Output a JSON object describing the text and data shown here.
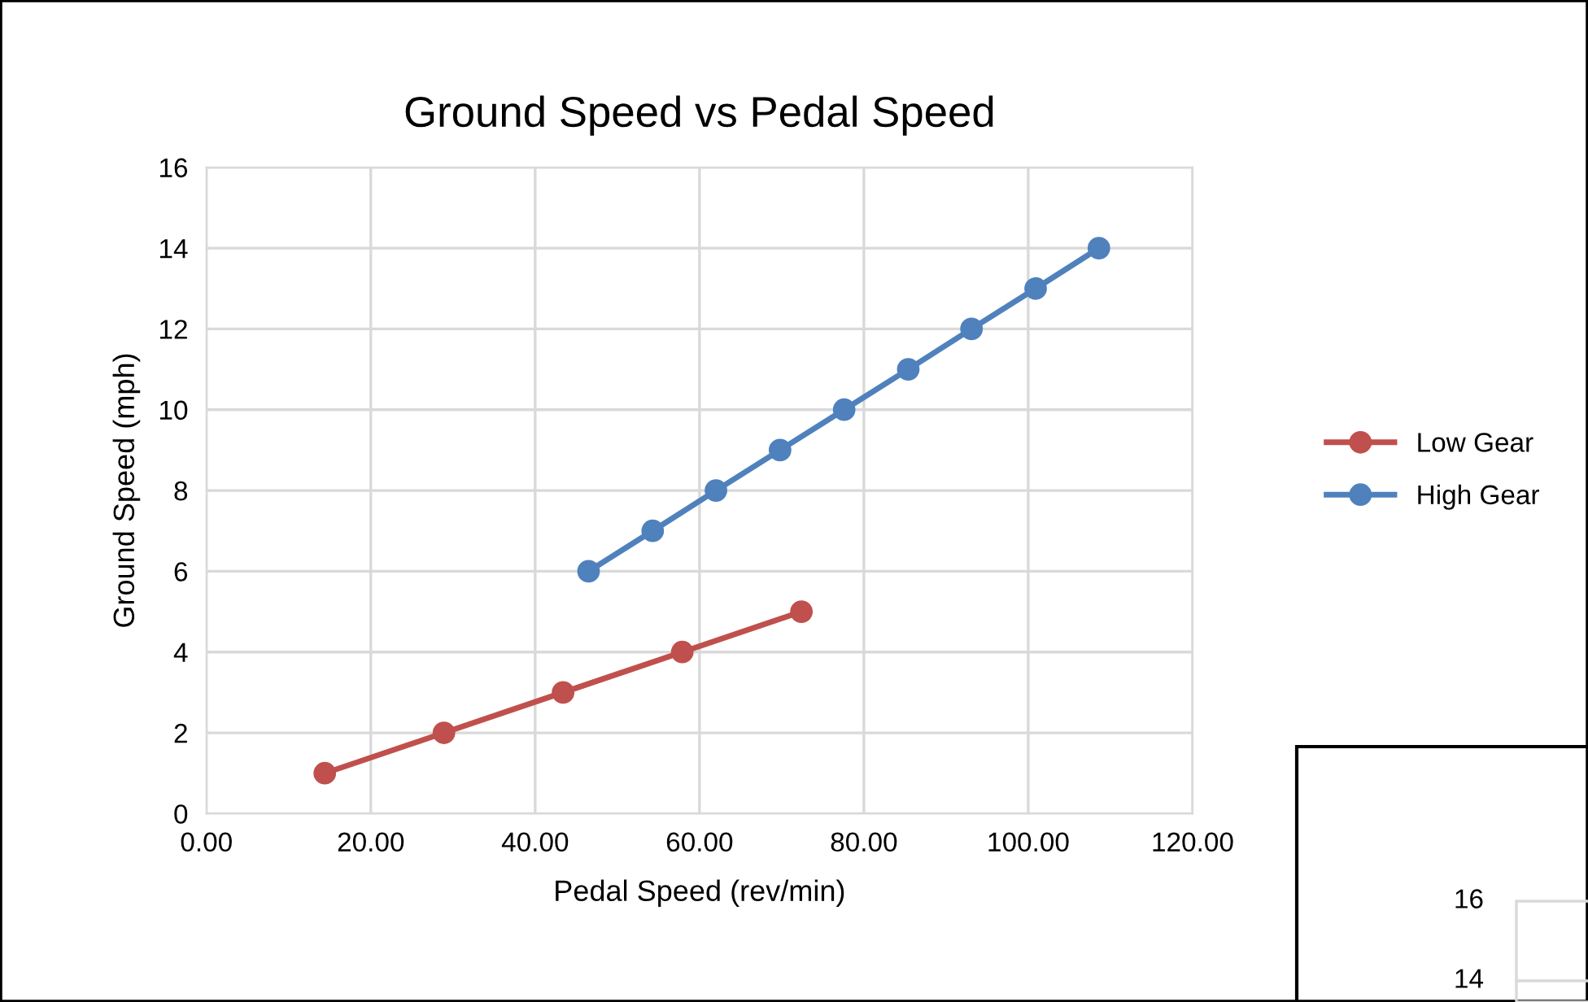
{
  "chart_data": [
    {
      "type": "line",
      "title": "Ground Speed vs Pedal Speed",
      "xlabel": "Pedal Speed (rev/min)",
      "ylabel": "Ground Speed (mph)",
      "series": [
        {
          "name": "Low Gear",
          "color": "#c0504d",
          "x": [
            14.4,
            28.9,
            43.4,
            57.9,
            72.4
          ],
          "values": [
            1,
            2,
            3,
            4,
            5
          ]
        },
        {
          "name": "High Gear",
          "color": "#4f81bd",
          "x": [
            46.5,
            54.3,
            62.0,
            69.8,
            77.6,
            85.4,
            93.1,
            100.9,
            108.6
          ],
          "values": [
            6,
            7,
            8,
            9,
            10,
            11,
            12,
            13,
            14
          ]
        }
      ],
      "xlim": [
        0,
        120
      ],
      "xticks": [
        {
          "value": 0,
          "label": "0.00"
        },
        {
          "value": 20,
          "label": "20.00"
        },
        {
          "value": 40,
          "label": "40.00"
        },
        {
          "value": 60,
          "label": "60.00"
        },
        {
          "value": 80,
          "label": "80.00"
        },
        {
          "value": 100,
          "label": "100.00"
        },
        {
          "value": 120,
          "label": "120.00"
        }
      ],
      "ylim": [
        0,
        16
      ],
      "yticks": [
        0,
        2,
        4,
        6,
        8,
        10,
        12,
        14,
        16
      ],
      "grid": true,
      "legend": "right",
      "marker": "circle",
      "line_style": "solid"
    },
    {
      "type": "other",
      "annotations": [
        "16",
        "14"
      ]
    }
  ]
}
